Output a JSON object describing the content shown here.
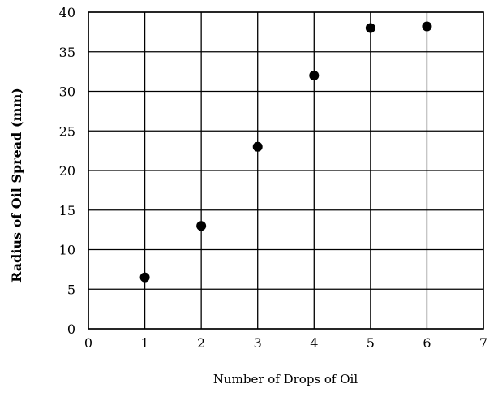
{
  "chart_data": {
    "type": "scatter",
    "title": "",
    "xlabel": "Number of Drops of Oil",
    "ylabel": "Radius of Oil Spread (mm)",
    "xlim": [
      0,
      7
    ],
    "ylim": [
      0,
      40
    ],
    "x_ticks": [
      0,
      1,
      2,
      3,
      4,
      5,
      6,
      7
    ],
    "y_ticks": [
      0,
      5,
      10,
      15,
      20,
      25,
      30,
      35,
      40
    ],
    "grid": true,
    "legend": "none",
    "point_color": "#000000",
    "points": [
      {
        "x": 1,
        "y": 6.5
      },
      {
        "x": 2,
        "y": 13
      },
      {
        "x": 3,
        "y": 23
      },
      {
        "x": 4,
        "y": 32
      },
      {
        "x": 5,
        "y": 38
      },
      {
        "x": 6,
        "y": 38.2
      }
    ]
  }
}
